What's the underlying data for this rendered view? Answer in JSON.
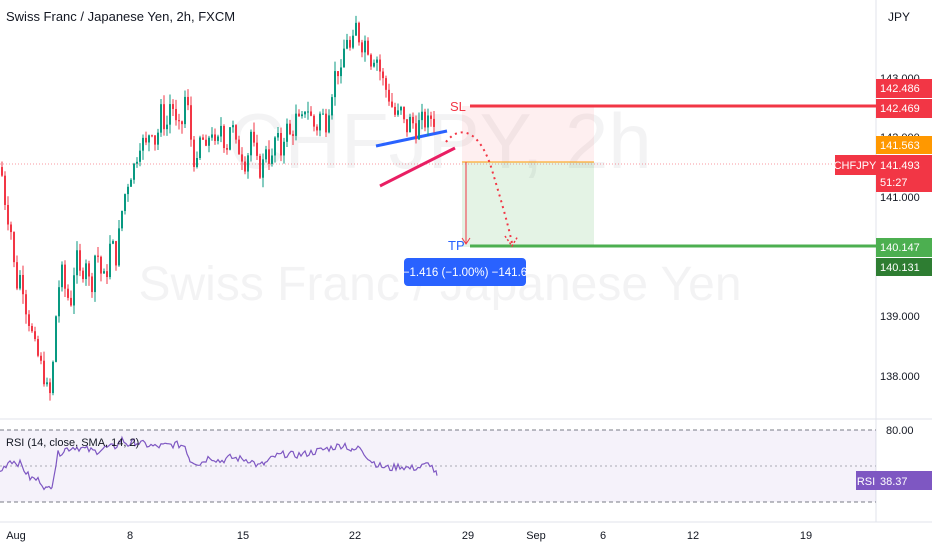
{
  "header": {
    "title": "Swiss Franc / Japanese Yen, 2h, FXCM",
    "currency": "JPY"
  },
  "watermark": {
    "symbol": "CHFJPY, 2h",
    "name": "Swiss Franc / Japanese Yen"
  },
  "colors": {
    "up": "#089981",
    "down": "#f23645",
    "sl": "#f23645",
    "tp": "#4caf50",
    "wedge_top": "#2962ff",
    "wedge_bottom": "#e91e63",
    "rsi": "#7e57c2",
    "measure": "#2962ff",
    "orange": "#ff9800"
  },
  "annotations": {
    "sl_label": "SL",
    "tp_label": "TP",
    "measure_label": "−1.416 (−1.00%) −141.6"
  },
  "price_axis": {
    "ticks": [
      "143.000",
      "142.000",
      "141.000",
      "139.000",
      "138.000"
    ],
    "badges": {
      "sl_a": "142.486",
      "sl_b": "142.469",
      "orange": "141.563",
      "symbol": "CHFJPY",
      "last": "141.493",
      "countdown": "51:27",
      "tp_a": "140.147",
      "tp_b": "140.131"
    }
  },
  "time_axis": {
    "labels": [
      "Aug",
      "8",
      "15",
      "22",
      "29",
      "Sep",
      "6",
      "12",
      "19"
    ]
  },
  "rsi_panel": {
    "title": "RSI (14, close, SMA, 14, 2)",
    "level_label": "80.00",
    "badge_name": "RSI",
    "badge_value": "38.37"
  },
  "chart_data": {
    "type": "candlestick",
    "series_name": "CHFJPY",
    "ylim": [
      137.45,
      143.25
    ],
    "path_points": [
      [
        0,
        141.0
      ],
      [
        5,
        140.4
      ],
      [
        10,
        140.1
      ],
      [
        15,
        139.3
      ],
      [
        20,
        139.5
      ],
      [
        25,
        139.0
      ],
      [
        30,
        138.7
      ],
      [
        35,
        138.4
      ],
      [
        40,
        138.2
      ],
      [
        45,
        137.9
      ],
      [
        50,
        137.75
      ],
      [
        55,
        138.9
      ],
      [
        60,
        139.6
      ],
      [
        65,
        139.2
      ],
      [
        70,
        139.1
      ],
      [
        75,
        139.8
      ],
      [
        80,
        139.4
      ],
      [
        85,
        139.7
      ],
      [
        90,
        139.2
      ],
      [
        95,
        139.9
      ],
      [
        100,
        139.5
      ],
      [
        105,
        139.4
      ],
      [
        110,
        140.0
      ],
      [
        115,
        139.7
      ],
      [
        120,
        140.3
      ],
      [
        125,
        140.7
      ],
      [
        130,
        140.9
      ],
      [
        135,
        141.1
      ],
      [
        140,
        141.4
      ],
      [
        145,
        141.3
      ],
      [
        150,
        141.6
      ],
      [
        155,
        141.3
      ],
      [
        160,
        141.8
      ],
      [
        165,
        141.5
      ],
      [
        170,
        142.0
      ],
      [
        175,
        141.6
      ],
      [
        180,
        141.5
      ],
      [
        185,
        142.1
      ],
      [
        190,
        141.4
      ],
      [
        195,
        140.9
      ],
      [
        200,
        141.5
      ],
      [
        205,
        141.2
      ],
      [
        210,
        141.6
      ],
      [
        215,
        141.2
      ],
      [
        220,
        141.6
      ],
      [
        225,
        141.2
      ],
      [
        230,
        141.7
      ],
      [
        235,
        141.3
      ],
      [
        240,
        141.2
      ],
      [
        245,
        141.0
      ],
      [
        250,
        141.5
      ],
      [
        255,
        141.1
      ],
      [
        260,
        140.9
      ],
      [
        265,
        141.3
      ],
      [
        270,
        141.0
      ],
      [
        275,
        141.5
      ],
      [
        280,
        141.2
      ],
      [
        285,
        141.6
      ],
      [
        290,
        141.4
      ],
      [
        295,
        141.7
      ],
      [
        300,
        141.6
      ],
      [
        305,
        141.9
      ],
      [
        310,
        141.7
      ],
      [
        315,
        141.5
      ],
      [
        320,
        141.8
      ],
      [
        325,
        141.6
      ],
      [
        330,
        142.0
      ],
      [
        335,
        142.4
      ],
      [
        340,
        142.3
      ],
      [
        345,
        142.9
      ],
      [
        350,
        142.6
      ],
      [
        355,
        143.0
      ],
      [
        360,
        142.7
      ],
      [
        365,
        142.8
      ],
      [
        370,
        142.5
      ],
      [
        375,
        142.6
      ],
      [
        380,
        142.3
      ],
      [
        385,
        142.1
      ],
      [
        390,
        141.9
      ],
      [
        395,
        141.7
      ],
      [
        400,
        141.8
      ],
      [
        405,
        141.5
      ],
      [
        410,
        141.7
      ],
      [
        415,
        141.5
      ],
      [
        420,
        141.7
      ],
      [
        425,
        141.6
      ],
      [
        430,
        141.7
      ],
      [
        435,
        141.6
      ]
    ],
    "rsi_points": [
      [
        0,
        45
      ],
      [
        10,
        55
      ],
      [
        20,
        52
      ],
      [
        30,
        40
      ],
      [
        40,
        38
      ],
      [
        47,
        30
      ],
      [
        52,
        35
      ],
      [
        58,
        60
      ],
      [
        65,
        64
      ],
      [
        75,
        66
      ],
      [
        85,
        64
      ],
      [
        95,
        62
      ],
      [
        105,
        65
      ],
      [
        115,
        66
      ],
      [
        122,
        72
      ],
      [
        128,
        68
      ],
      [
        135,
        70
      ],
      [
        145,
        68
      ],
      [
        155,
        66
      ],
      [
        165,
        67
      ],
      [
        175,
        68
      ],
      [
        185,
        67
      ],
      [
        190,
        55
      ],
      [
        200,
        52
      ],
      [
        210,
        58
      ],
      [
        220,
        54
      ],
      [
        230,
        57
      ],
      [
        240,
        56
      ],
      [
        250,
        55
      ],
      [
        258,
        50
      ],
      [
        265,
        52
      ],
      [
        275,
        58
      ],
      [
        285,
        60
      ],
      [
        295,
        59
      ],
      [
        305,
        60
      ],
      [
        315,
        62
      ],
      [
        325,
        64
      ],
      [
        335,
        66
      ],
      [
        345,
        68
      ],
      [
        352,
        62
      ],
      [
        360,
        66
      ],
      [
        370,
        55
      ],
      [
        380,
        50
      ],
      [
        390,
        48
      ],
      [
        400,
        50
      ],
      [
        410,
        48
      ],
      [
        420,
        49
      ],
      [
        430,
        52
      ],
      [
        437,
        42
      ]
    ]
  }
}
